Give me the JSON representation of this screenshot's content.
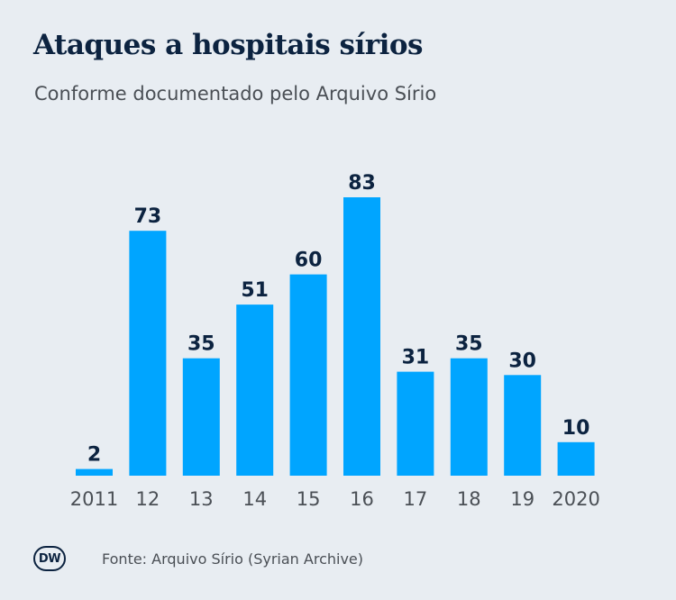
{
  "header": {
    "title": "Ataques a hospitais sírios",
    "subtitle": "Conforme documentado pelo Arquivo Sírio"
  },
  "footer": {
    "logo_text": "DW",
    "source": "Fonte: Arquivo Sírio (Syrian Archive)"
  },
  "colors": {
    "bar": "#00a5ff",
    "label": "#0c2340",
    "tick": "#4a4f55",
    "background": "#e8edf2"
  },
  "chart_data": {
    "type": "bar",
    "categories": [
      "2011",
      "12",
      "13",
      "14",
      "15",
      "16",
      "17",
      "18",
      "19",
      "2020"
    ],
    "values": [
      2,
      73,
      35,
      51,
      60,
      83,
      31,
      35,
      30,
      10
    ],
    "title": "Ataques a hospitais sírios",
    "subtitle": "Conforme documentado pelo Arquivo Sírio",
    "ylim": [
      0,
      83
    ],
    "grid": false,
    "legend": "none"
  }
}
